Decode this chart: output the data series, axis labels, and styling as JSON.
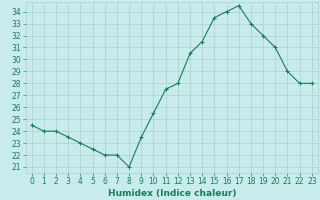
{
  "x": [
    0,
    1,
    2,
    3,
    4,
    5,
    6,
    7,
    8,
    9,
    10,
    11,
    12,
    13,
    14,
    15,
    16,
    17,
    18,
    19,
    20,
    21,
    22,
    23
  ],
  "y": [
    24.5,
    24.0,
    24.0,
    23.5,
    23.0,
    22.5,
    22.0,
    22.0,
    21.0,
    23.5,
    25.5,
    27.5,
    28.0,
    30.5,
    31.5,
    33.5,
    34.0,
    34.5,
    33.0,
    32.0,
    31.0,
    29.0,
    28.0,
    28.0
  ],
  "line_color": "#1a7a60",
  "marker": "+",
  "marker_color": "#1a7a60",
  "bg_color": "#c8ecec",
  "grid_color": "#aed0ce",
  "xlabel": "Humidex (Indice chaleur)",
  "ylabel_ticks": [
    21,
    22,
    23,
    24,
    25,
    26,
    27,
    28,
    29,
    30,
    31,
    32,
    33,
    34
  ],
  "ylim": [
    20.5,
    34.8
  ],
  "xlim": [
    -0.5,
    23.5
  ],
  "font_color": "#1a7a60",
  "label_fontsize": 6.5,
  "tick_fontsize": 5.5
}
